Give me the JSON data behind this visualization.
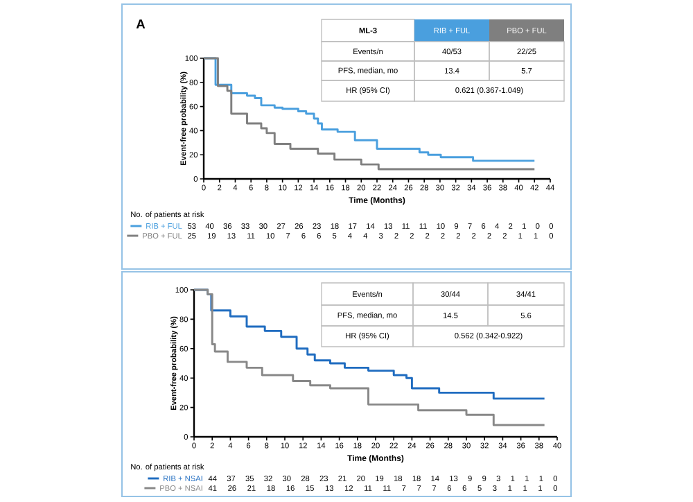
{
  "chart_data": [
    {
      "type": "step",
      "title": "A",
      "legend": "bottom",
      "xlabel": "Time (Months)",
      "ylabel": "Event-free probability (%)",
      "xlim": [
        0,
        44
      ],
      "ylim": [
        0,
        100
      ],
      "xticks": [
        0,
        2,
        4,
        6,
        8,
        10,
        12,
        14,
        16,
        18,
        20,
        22,
        24,
        26,
        28,
        30,
        32,
        34,
        36,
        38,
        40,
        42,
        44
      ],
      "yticks": [
        0,
        20,
        40,
        60,
        80,
        100
      ],
      "series": [
        {
          "name": "RIB + FUL",
          "color": "#4a9fde",
          "x": [
            0,
            1.5,
            3.5,
            5.5,
            6.5,
            7.3,
            9,
            10,
            12,
            13,
            14,
            14.5,
            15,
            17,
            19.2,
            22,
            27.4,
            28.5,
            30.1,
            34.2,
            42
          ],
          "values": [
            100,
            78,
            71,
            69,
            67,
            61,
            59,
            58,
            56,
            54,
            50,
            46,
            41,
            39,
            32,
            25,
            22,
            20,
            18,
            15,
            15
          ]
        },
        {
          "name": "PBO + FUL",
          "color": "#7f7f7f",
          "x": [
            0,
            1.8,
            3,
            3.5,
            5.5,
            7.3,
            8,
            9,
            11,
            14.5,
            16.6,
            20,
            22.2,
            42
          ],
          "values": [
            100,
            77,
            73,
            54,
            46,
            42,
            38,
            29,
            25,
            21,
            16,
            12,
            8,
            8
          ]
        }
      ],
      "annotations": [
        "ML-3",
        "Events/n",
        "40/53",
        "22/25",
        "PFS, median, mo",
        "13.4",
        "5.7",
        "HR (95% CI)",
        "0.621 (0.367-1.049)",
        "No. of patients at risk",
        "53 40 36 33 30 27 26 23 18 17 14 13 11 11 10 9 7 6 4 2 1 0 0",
        "25 19 13 11 10 7 6 6 5 4 4 3 2 2 2 2 2 2 2 2 1 1 0"
      ]
    },
    {
      "type": "step",
      "legend": "bottom",
      "xlabel": "Time (Months)",
      "ylabel": "Event-free probability (%)",
      "xlim": [
        0,
        40
      ],
      "ylim": [
        0,
        100
      ],
      "xticks": [
        0,
        2,
        4,
        6,
        8,
        10,
        12,
        14,
        16,
        18,
        20,
        22,
        24,
        26,
        28,
        30,
        32,
        34,
        36,
        38,
        40
      ],
      "yticks": [
        0,
        20,
        40,
        60,
        80,
        100
      ],
      "series": [
        {
          "name": "RIB + NSAI",
          "color": "#1f6cc0",
          "x": [
            0,
            1.5,
            1.9,
            4,
            5.8,
            7.8,
            9.6,
            11.3,
            12.5,
            13.3,
            15,
            16.6,
            19.2,
            22,
            23.4,
            24,
            27,
            33,
            38.6
          ],
          "values": [
            100,
            97,
            86,
            82,
            75,
            72,
            68,
            60,
            56,
            52,
            50,
            47,
            45,
            42,
            40,
            33,
            30,
            26,
            26
          ]
        },
        {
          "name": "PBO + NSAI",
          "color": "#888888",
          "x": [
            0,
            1.5,
            2,
            2.3,
            3.7,
            5.8,
            7.5,
            10.9,
            12.8,
            15,
            19.2,
            24.7,
            30,
            33,
            38.6
          ],
          "values": [
            100,
            97,
            63,
            58,
            51,
            47,
            42,
            38,
            35,
            33,
            22,
            18,
            15,
            8,
            8
          ]
        }
      ],
      "annotations": [
        "Events/n",
        "30/44",
        "34/41",
        "PFS, median, mo",
        "14.5",
        "5.6",
        "HR (95% CI)",
        "0.562 (0.342-0.922)",
        "No. of patients at risk",
        "44 37 35 32 30 28 23 21 20 19 18 18 14 13 9 9 3 1 1 1 0",
        "41 26 21 18 16 15 13 12 11 11 7 7 7 6 6 5 3 1 1 1 0"
      ]
    }
  ]
}
